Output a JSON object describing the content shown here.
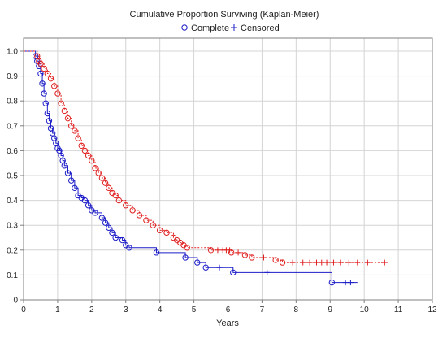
{
  "chart_data": {
    "type": "line",
    "title": "Cumulative Proportion Surviving (Kaplan-Meier)",
    "xlabel": "Years",
    "ylabel": "",
    "xlim": [
      0,
      12
    ],
    "ylim": [
      0,
      1.0
    ],
    "x_ticks": [
      "0",
      "1",
      "2",
      "3",
      "4",
      "5",
      "6",
      "7",
      "8",
      "9",
      "10",
      "11",
      "12"
    ],
    "y_ticks": [
      "0",
      "0.1",
      "0.2",
      "0.3",
      "0.4",
      "0.5",
      "0.6",
      "0.7",
      "0.8",
      "0.9",
      "1.0"
    ],
    "grid": true,
    "legend": {
      "position": "top",
      "complete_label": "Complete",
      "censored_label": "Censored"
    },
    "series": [
      {
        "color": "#1c1cc8",
        "marker": "circle",
        "style": "solid",
        "x": [
          0,
          0.35,
          0.4,
          0.45,
          0.5,
          0.55,
          0.6,
          0.65,
          0.7,
          0.75,
          0.8,
          0.85,
          0.9,
          0.95,
          1.0,
          1.05,
          1.1,
          1.15,
          1.2,
          1.3,
          1.4,
          1.5,
          1.6,
          1.7,
          1.8,
          1.9,
          2.0,
          2.1,
          2.3,
          2.4,
          2.5,
          2.6,
          2.7,
          2.9,
          3.0,
          3.1,
          3.9,
          4.75,
          5.1,
          5.35,
          6.15,
          9.05,
          9.8
        ],
        "y": [
          1.0,
          0.98,
          0.96,
          0.94,
          0.91,
          0.87,
          0.83,
          0.79,
          0.75,
          0.72,
          0.69,
          0.67,
          0.65,
          0.63,
          0.61,
          0.6,
          0.58,
          0.56,
          0.54,
          0.51,
          0.48,
          0.45,
          0.42,
          0.41,
          0.4,
          0.38,
          0.36,
          0.35,
          0.33,
          0.31,
          0.29,
          0.27,
          0.25,
          0.24,
          0.22,
          0.21,
          0.19,
          0.17,
          0.15,
          0.13,
          0.11,
          0.07,
          0.07
        ],
        "censored_x": [
          5.75,
          7.15,
          9.45,
          9.6
        ]
      },
      {
        "color": "#e02020",
        "marker": "circle",
        "style": "dotted",
        "x": [
          0,
          0.4,
          0.45,
          0.5,
          0.6,
          0.7,
          0.8,
          0.9,
          1.0,
          1.1,
          1.2,
          1.3,
          1.4,
          1.5,
          1.6,
          1.7,
          1.8,
          1.9,
          2.0,
          2.1,
          2.2,
          2.3,
          2.4,
          2.5,
          2.6,
          2.7,
          2.8,
          3.0,
          3.2,
          3.4,
          3.6,
          3.8,
          4.0,
          4.2,
          4.4,
          4.5,
          4.6,
          4.7,
          4.8,
          5.5,
          6.1,
          6.5,
          6.7,
          7.4,
          7.6,
          10.6
        ],
        "y": [
          1.0,
          0.98,
          0.96,
          0.95,
          0.93,
          0.91,
          0.89,
          0.86,
          0.83,
          0.79,
          0.76,
          0.73,
          0.7,
          0.68,
          0.65,
          0.62,
          0.6,
          0.58,
          0.56,
          0.53,
          0.51,
          0.49,
          0.47,
          0.45,
          0.43,
          0.42,
          0.4,
          0.38,
          0.36,
          0.34,
          0.32,
          0.3,
          0.28,
          0.27,
          0.25,
          0.24,
          0.23,
          0.22,
          0.21,
          0.2,
          0.19,
          0.18,
          0.17,
          0.16,
          0.15,
          0.15
        ],
        "censored_x": [
          5.7,
          5.85,
          5.95,
          6.05,
          6.3,
          7.05,
          7.9,
          8.2,
          8.4,
          8.6,
          8.75,
          8.9,
          9.1,
          9.3,
          9.55,
          9.8,
          10.1,
          10.6
        ]
      }
    ]
  }
}
